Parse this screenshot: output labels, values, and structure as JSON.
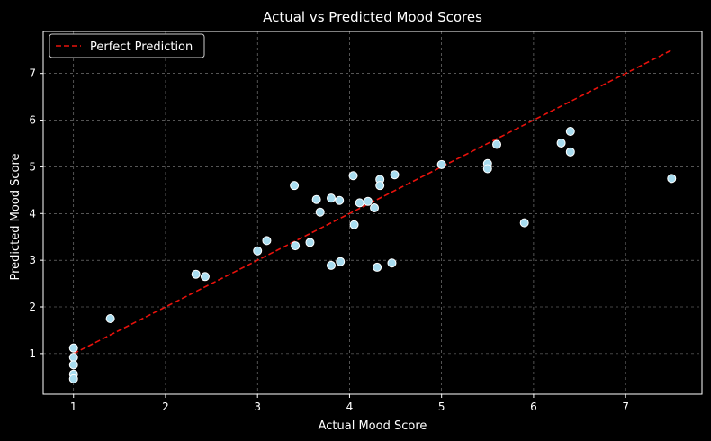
{
  "colors": {
    "background": "#000000",
    "grid": "#888888",
    "point_fill": "#a8dcef",
    "point_edge": "#ffffff",
    "reference_line": "#e8120c",
    "text": "#ffffff"
  },
  "chart_data": {
    "type": "scatter",
    "title": "Actual vs Predicted Mood Scores",
    "xlabel": "Actual Mood Score",
    "ylabel": "Predicted Mood Score",
    "xlim": [
      0.67,
      7.83
    ],
    "ylim": [
      0.13,
      7.9
    ],
    "xticks": [
      1,
      2,
      3,
      4,
      5,
      6,
      7
    ],
    "yticks": [
      1,
      2,
      3,
      4,
      5,
      6,
      7
    ],
    "grid": true,
    "legend_position": "top-left",
    "reference_line": {
      "name": "Perfect Prediction",
      "x": [
        1,
        7.5
      ],
      "y": [
        1,
        7.5
      ]
    },
    "points": [
      {
        "x": 1.0,
        "y": 1.12
      },
      {
        "x": 1.0,
        "y": 0.92
      },
      {
        "x": 1.0,
        "y": 0.76
      },
      {
        "x": 1.0,
        "y": 0.56
      },
      {
        "x": 1.0,
        "y": 0.46
      },
      {
        "x": 1.4,
        "y": 1.75
      },
      {
        "x": 2.33,
        "y": 2.7
      },
      {
        "x": 2.43,
        "y": 2.65
      },
      {
        "x": 3.0,
        "y": 3.2
      },
      {
        "x": 3.1,
        "y": 3.42
      },
      {
        "x": 3.4,
        "y": 4.6
      },
      {
        "x": 3.41,
        "y": 3.31
      },
      {
        "x": 3.57,
        "y": 3.38
      },
      {
        "x": 3.64,
        "y": 4.3
      },
      {
        "x": 3.68,
        "y": 4.03
      },
      {
        "x": 3.8,
        "y": 4.33
      },
      {
        "x": 3.8,
        "y": 2.89
      },
      {
        "x": 3.89,
        "y": 4.28
      },
      {
        "x": 3.9,
        "y": 2.97
      },
      {
        "x": 4.04,
        "y": 4.81
      },
      {
        "x": 4.05,
        "y": 3.76
      },
      {
        "x": 4.11,
        "y": 4.23
      },
      {
        "x": 4.2,
        "y": 4.26
      },
      {
        "x": 4.27,
        "y": 4.12
      },
      {
        "x": 4.3,
        "y": 2.85
      },
      {
        "x": 4.33,
        "y": 4.73
      },
      {
        "x": 4.33,
        "y": 4.6
      },
      {
        "x": 4.46,
        "y": 2.94
      },
      {
        "x": 4.49,
        "y": 4.83
      },
      {
        "x": 5.0,
        "y": 5.05
      },
      {
        "x": 5.5,
        "y": 5.07
      },
      {
        "x": 5.5,
        "y": 4.96
      },
      {
        "x": 5.6,
        "y": 5.48
      },
      {
        "x": 5.9,
        "y": 3.8
      },
      {
        "x": 6.3,
        "y": 5.51
      },
      {
        "x": 6.4,
        "y": 5.76
      },
      {
        "x": 6.4,
        "y": 5.32
      },
      {
        "x": 7.5,
        "y": 4.75
      }
    ]
  }
}
